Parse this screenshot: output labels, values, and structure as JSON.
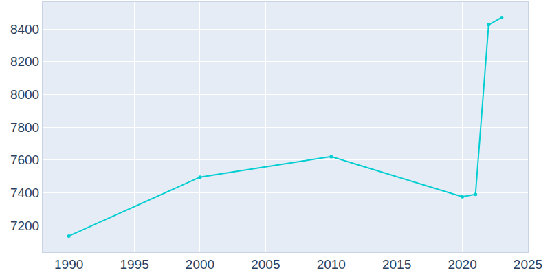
{
  "chart_data": {
    "type": "line",
    "x": [
      1990,
      2000,
      2010,
      2020,
      2021,
      2022,
      2023
    ],
    "values": [
      7135,
      7495,
      7620,
      7375,
      7390,
      8425,
      8470
    ],
    "color": "#00CED1",
    "marker": "circle",
    "xlim": [
      1988,
      2025
    ],
    "ylim": [
      7036,
      8564
    ],
    "xticks": [
      1990,
      1995,
      2000,
      2005,
      2010,
      2015,
      2020,
      2025
    ],
    "yticks": [
      7200,
      7400,
      7600,
      7800,
      8000,
      8200,
      8400
    ],
    "grid": true
  }
}
